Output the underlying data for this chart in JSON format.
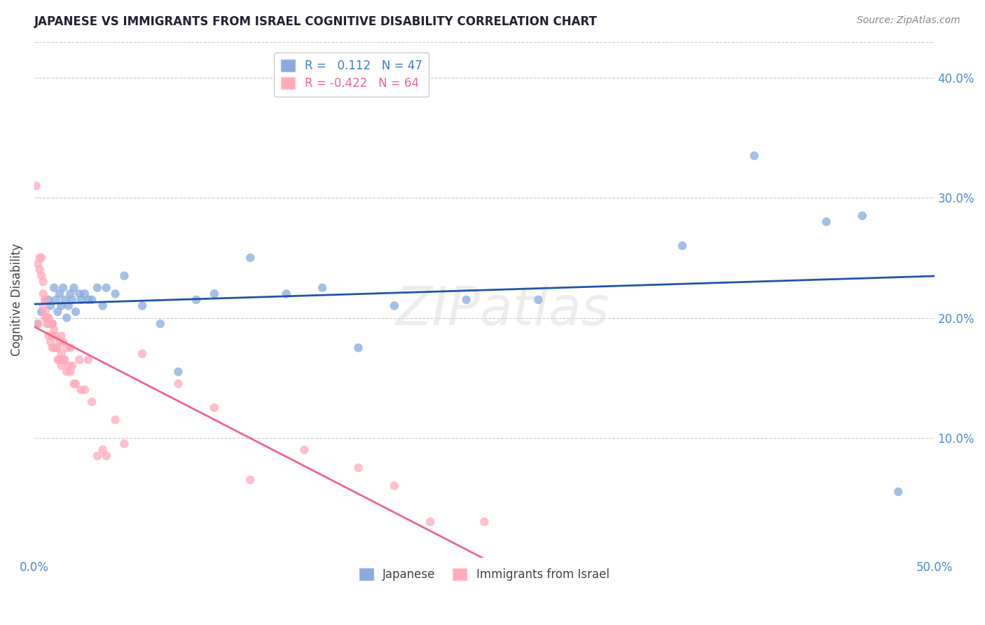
{
  "title": "JAPANESE VS IMMIGRANTS FROM ISRAEL COGNITIVE DISABILITY CORRELATION CHART",
  "source": "Source: ZipAtlas.com",
  "ylabel": "Cognitive Disability",
  "xlim": [
    0.0,
    0.5
  ],
  "ylim": [
    0.0,
    0.43
  ],
  "yticks": [
    0.1,
    0.2,
    0.3,
    0.4
  ],
  "ytick_labels": [
    "10.0%",
    "20.0%",
    "30.0%",
    "40.0%"
  ],
  "xticks": [
    0.0,
    0.1,
    0.2,
    0.3,
    0.4,
    0.5
  ],
  "xtick_labels": [
    "0.0%",
    "",
    "",
    "",
    "",
    "50.0%"
  ],
  "watermark": "ZIPatlas",
  "japanese_color": "#88aadd",
  "israel_color": "#ffaabb",
  "trendline_japanese_color": "#2255aa",
  "trendline_israel_color": "#ee6688",
  "scatter_alpha": 0.75,
  "marker_size": 80,
  "japanese_x": [
    0.002,
    0.004,
    0.006,
    0.007,
    0.008,
    0.009,
    0.01,
    0.011,
    0.012,
    0.013,
    0.014,
    0.015,
    0.016,
    0.017,
    0.018,
    0.019,
    0.02,
    0.021,
    0.022,
    0.023,
    0.025,
    0.026,
    0.028,
    0.03,
    0.032,
    0.035,
    0.038,
    0.04,
    0.045,
    0.05,
    0.06,
    0.07,
    0.08,
    0.09,
    0.1,
    0.12,
    0.14,
    0.16,
    0.18,
    0.2,
    0.24,
    0.28,
    0.36,
    0.4,
    0.44,
    0.46,
    0.48
  ],
  "japanese_y": [
    0.195,
    0.205,
    0.215,
    0.2,
    0.215,
    0.21,
    0.195,
    0.225,
    0.215,
    0.205,
    0.22,
    0.21,
    0.225,
    0.215,
    0.2,
    0.21,
    0.22,
    0.215,
    0.225,
    0.205,
    0.22,
    0.215,
    0.22,
    0.215,
    0.215,
    0.225,
    0.21,
    0.225,
    0.22,
    0.235,
    0.21,
    0.195,
    0.155,
    0.215,
    0.22,
    0.25,
    0.22,
    0.225,
    0.175,
    0.21,
    0.215,
    0.215,
    0.26,
    0.335,
    0.28,
    0.285,
    0.055
  ],
  "israel_x": [
    0.001,
    0.002,
    0.002,
    0.003,
    0.003,
    0.004,
    0.004,
    0.005,
    0.005,
    0.005,
    0.006,
    0.006,
    0.006,
    0.007,
    0.007,
    0.008,
    0.008,
    0.008,
    0.009,
    0.009,
    0.01,
    0.01,
    0.01,
    0.011,
    0.011,
    0.012,
    0.012,
    0.013,
    0.013,
    0.014,
    0.014,
    0.015,
    0.015,
    0.015,
    0.016,
    0.016,
    0.017,
    0.018,
    0.018,
    0.019,
    0.02,
    0.02,
    0.021,
    0.022,
    0.023,
    0.025,
    0.026,
    0.028,
    0.03,
    0.032,
    0.035,
    0.038,
    0.04,
    0.045,
    0.05,
    0.06,
    0.08,
    0.1,
    0.12,
    0.15,
    0.18,
    0.2,
    0.22,
    0.25
  ],
  "israel_y": [
    0.31,
    0.195,
    0.245,
    0.25,
    0.24,
    0.25,
    0.235,
    0.23,
    0.22,
    0.21,
    0.205,
    0.2,
    0.215,
    0.195,
    0.2,
    0.2,
    0.195,
    0.185,
    0.195,
    0.18,
    0.195,
    0.185,
    0.175,
    0.19,
    0.175,
    0.185,
    0.175,
    0.175,
    0.165,
    0.18,
    0.165,
    0.185,
    0.17,
    0.16,
    0.18,
    0.165,
    0.165,
    0.175,
    0.155,
    0.16,
    0.175,
    0.155,
    0.16,
    0.145,
    0.145,
    0.165,
    0.14,
    0.14,
    0.165,
    0.13,
    0.085,
    0.09,
    0.085,
    0.115,
    0.095,
    0.17,
    0.145,
    0.125,
    0.065,
    0.09,
    0.075,
    0.06,
    0.03,
    0.03
  ],
  "legend_label_japanese": "R =   0.112   N = 47",
  "legend_label_israel": "R = -0.422   N = 64",
  "legend_color_japanese": "#88aadd",
  "legend_color_israel": "#ffaabb",
  "legend_text_color_japanese": "#4477cc",
  "legend_text_color_israel": "#ee6688"
}
